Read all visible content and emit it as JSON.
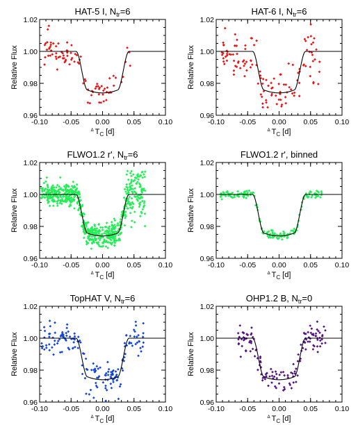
{
  "figure": {
    "ylabel": "Relative Flux",
    "xlabel_main": "T",
    "xlabel_sub": "C",
    "xlabel_unit": " [d]",
    "xlabel_prefix": "Δ"
  },
  "chart_data": [
    {
      "type": "scatter",
      "title": {
        "main": "HAT-5 I, N",
        "sub": "tr",
        "rest": "=6"
      },
      "color": "#ee1111",
      "xlim": [
        -0.1,
        0.1
      ],
      "ylim": [
        0.96,
        1.02
      ],
      "xticks": [
        "-0.10",
        "-0.05",
        "0.00",
        "0.05",
        "0.10"
      ],
      "yticks": [
        "0.96",
        "0.98",
        "1.00",
        "1.02"
      ],
      "xrange": [
        -0.095,
        0.045
      ],
      "n": 90,
      "noise": 0.0045,
      "seed": 11
    },
    {
      "type": "scatter",
      "title": {
        "main": "HAT-6 I, N",
        "sub": "tr",
        "rest": "=6"
      },
      "color": "#ee1111",
      "xlim": [
        -0.1,
        0.1
      ],
      "ylim": [
        0.96,
        1.02
      ],
      "xticks": [
        "-0.10",
        "-0.05",
        "0.00",
        "0.05",
        "0.10"
      ],
      "yticks": [
        "0.96",
        "0.98",
        "1.00",
        "1.02"
      ],
      "xrange": [
        -0.095,
        0.065
      ],
      "n": 130,
      "noise": 0.007,
      "seed": 23
    },
    {
      "type": "scatter",
      "title": {
        "main": "FLWO1.2 r', N",
        "sub": "tr",
        "rest": "=6"
      },
      "color": "#22ee55",
      "xlim": [
        -0.1,
        0.1
      ],
      "ylim": [
        0.96,
        1.02
      ],
      "xticks": [
        "-0.10",
        "-0.05",
        "0.00",
        "0.05",
        "0.10"
      ],
      "yticks": [
        "0.96",
        "0.98",
        "1.00",
        "1.02"
      ],
      "xrange": [
        -0.098,
        0.068
      ],
      "n": 700,
      "noise": 0.0035,
      "seed": 37
    },
    {
      "type": "scatter",
      "title": {
        "main": "FLWO1.2 r', binned",
        "sub": "",
        "rest": ""
      },
      "color": "#22ee55",
      "xlim": [
        -0.1,
        0.1
      ],
      "ylim": [
        0.96,
        1.02
      ],
      "xticks": [
        "-0.10",
        "-0.05",
        "0.00",
        "0.05",
        "0.10"
      ],
      "yticks": [
        "0.96",
        "0.98",
        "1.00",
        "1.02"
      ],
      "xrange": [
        -0.095,
        0.068
      ],
      "n": 180,
      "noise": 0.0012,
      "seed": 41
    },
    {
      "type": "scatter",
      "title": {
        "main": "TopHAT V, N",
        "sub": "tr",
        "rest": "=6"
      },
      "color": "#1144dd",
      "xlim": [
        -0.1,
        0.1
      ],
      "ylim": [
        0.96,
        1.02
      ],
      "xticks": [
        "-0.10",
        "-0.05",
        "0.00",
        "0.05",
        "0.10"
      ],
      "yticks": [
        "0.96",
        "0.98",
        "1.00",
        "1.02"
      ],
      "xrange": [
        -0.098,
        0.065
      ],
      "n": 170,
      "noise": 0.005,
      "seed": 53
    },
    {
      "type": "scatter",
      "title": {
        "main": "OHP1.2 B, N",
        "sub": "tr",
        "rest": "=0"
      },
      "color": "#551188",
      "xlim": [
        -0.1,
        0.1
      ],
      "ylim": [
        0.96,
        1.02
      ],
      "xticks": [
        "-0.10",
        "-0.05",
        "0.00",
        "0.05",
        "0.10"
      ],
      "yticks": [
        "0.96",
        "0.98",
        "1.00",
        "1.02"
      ],
      "xrange": [
        -0.065,
        0.075
      ],
      "n": 140,
      "noise": 0.004,
      "seed": 67
    }
  ],
  "model": {
    "depth": 0.026,
    "t14": 0.084,
    "t12": 0.018,
    "line_color": "#000000"
  }
}
